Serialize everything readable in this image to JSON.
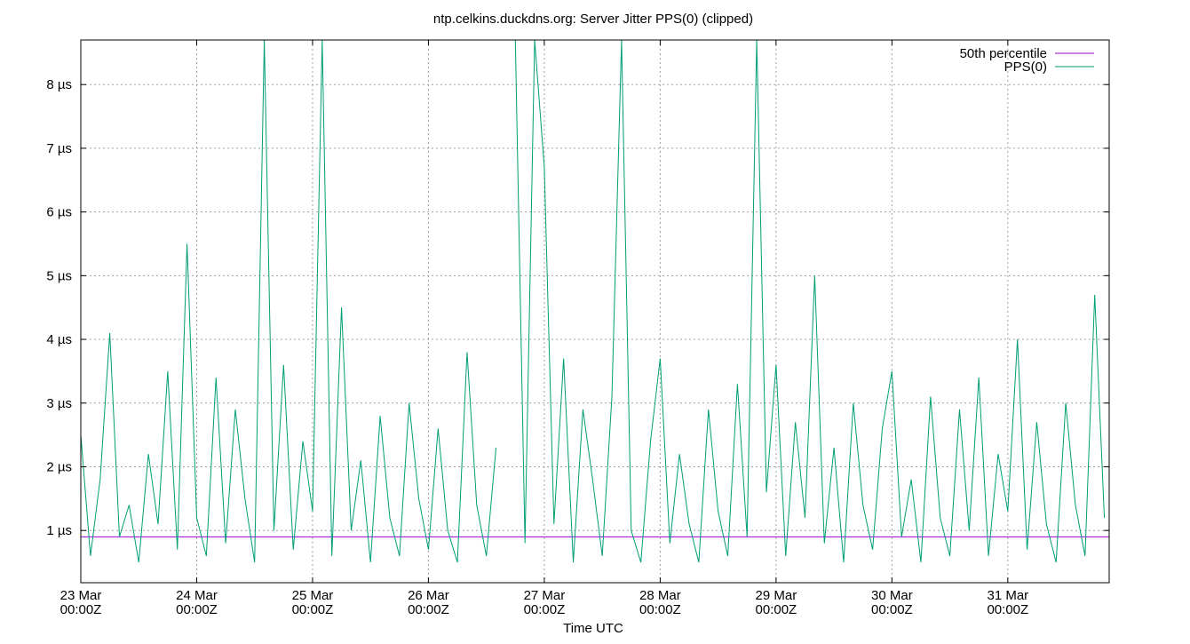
{
  "chart_data": {
    "type": "line",
    "title": "ntp.celkins.duckdns.org: Server Jitter PPS(0) (clipped)",
    "x_label": "Time UTC",
    "xlim": [
      "23 Mar 00:00Z",
      "31 Mar 21:00Z"
    ],
    "xticks": [
      {
        "value": "23 Mar 00:00Z",
        "label": [
          "23 Mar",
          "00:00Z"
        ]
      },
      {
        "value": "24 Mar 00:00Z",
        "label": [
          "24 Mar",
          "00:00Z"
        ]
      },
      {
        "value": "25 Mar 00:00Z",
        "label": [
          "25 Mar",
          "00:00Z"
        ]
      },
      {
        "value": "26 Mar 00:00Z",
        "label": [
          "26 Mar",
          "00:00Z"
        ]
      },
      {
        "value": "27 Mar 00:00Z",
        "label": [
          "27 Mar",
          "00:00Z"
        ]
      },
      {
        "value": "28 Mar 00:00Z",
        "label": [
          "28 Mar",
          "00:00Z"
        ]
      },
      {
        "value": "29 Mar 00:00Z",
        "label": [
          "29 Mar",
          "00:00Z"
        ]
      },
      {
        "value": "30 Mar 00:00Z",
        "label": [
          "30 Mar",
          "00:00Z"
        ]
      },
      {
        "value": "31 Mar 00:00Z",
        "label": [
          "31 Mar",
          "00:00Z"
        ]
      }
    ],
    "ylim": [
      0.18,
      8.7
    ],
    "yticks": [
      {
        "value": 1,
        "label": "1 µs"
      },
      {
        "value": 2,
        "label": "2 µs"
      },
      {
        "value": 3,
        "label": "3 µs"
      },
      {
        "value": 4,
        "label": "4 µs"
      },
      {
        "value": 5,
        "label": "5 µs"
      },
      {
        "value": 6,
        "label": "6 µs"
      },
      {
        "value": 7,
        "label": "7 µs"
      },
      {
        "value": 8,
        "label": "8 µs"
      }
    ],
    "grid": true,
    "legend": "top-right",
    "series": [
      {
        "name": "50th percentile",
        "color": "#9400d3",
        "x": [
          "23 Mar 00:00Z",
          "31 Mar 21:00Z"
        ],
        "values": [
          0.9,
          0.9
        ]
      },
      {
        "name": "PPS(0)",
        "color": "#009e73",
        "x": [
          "23 Mar 00:00Z",
          "23 Mar 02:00Z",
          "23 Mar 04:00Z",
          "23 Mar 06:00Z",
          "23 Mar 08:00Z",
          "23 Mar 10:00Z",
          "23 Mar 12:00Z",
          "23 Mar 14:00Z",
          "23 Mar 16:00Z",
          "23 Mar 18:00Z",
          "23 Mar 20:00Z",
          "23 Mar 22:00Z",
          "24 Mar 00:00Z",
          "24 Mar 02:00Z",
          "24 Mar 04:00Z",
          "24 Mar 06:00Z",
          "24 Mar 08:00Z",
          "24 Mar 10:00Z",
          "24 Mar 12:00Z",
          "24 Mar 14:00Z",
          "24 Mar 16:00Z",
          "24 Mar 18:00Z",
          "24 Mar 20:00Z",
          "24 Mar 22:00Z",
          "25 Mar 00:00Z",
          "25 Mar 02:00Z",
          "25 Mar 04:00Z",
          "25 Mar 06:00Z",
          "25 Mar 08:00Z",
          "25 Mar 10:00Z",
          "25 Mar 12:00Z",
          "25 Mar 14:00Z",
          "25 Mar 16:00Z",
          "25 Mar 18:00Z",
          "25 Mar 20:00Z",
          "25 Mar 22:00Z",
          "26 Mar 00:00Z",
          "26 Mar 02:00Z",
          "26 Mar 04:00Z",
          "26 Mar 06:00Z",
          "26 Mar 08:00Z",
          "26 Mar 10:00Z",
          "26 Mar 12:00Z",
          "26 Mar 14:00Z",
          "26 Mar 16:00Z",
          "26 Mar 18:00Z",
          "26 Mar 20:00Z",
          "26 Mar 22:00Z",
          "27 Mar 00:00Z",
          "27 Mar 02:00Z",
          "27 Mar 04:00Z",
          "27 Mar 06:00Z",
          "27 Mar 08:00Z",
          "27 Mar 10:00Z",
          "27 Mar 12:00Z",
          "27 Mar 14:00Z",
          "27 Mar 16:00Z",
          "27 Mar 18:00Z",
          "27 Mar 20:00Z",
          "27 Mar 22:00Z",
          "28 Mar 00:00Z",
          "28 Mar 02:00Z",
          "28 Mar 04:00Z",
          "28 Mar 06:00Z",
          "28 Mar 08:00Z",
          "28 Mar 10:00Z",
          "28 Mar 12:00Z",
          "28 Mar 14:00Z",
          "28 Mar 16:00Z",
          "28 Mar 18:00Z",
          "28 Mar 20:00Z",
          "28 Mar 22:00Z",
          "29 Mar 00:00Z",
          "29 Mar 02:00Z",
          "29 Mar 04:00Z",
          "29 Mar 06:00Z",
          "29 Mar 08:00Z",
          "29 Mar 10:00Z",
          "29 Mar 12:00Z",
          "29 Mar 14:00Z",
          "29 Mar 16:00Z",
          "29 Mar 18:00Z",
          "29 Mar 20:00Z",
          "29 Mar 22:00Z",
          "30 Mar 00:00Z",
          "30 Mar 02:00Z",
          "30 Mar 04:00Z",
          "30 Mar 06:00Z",
          "30 Mar 08:00Z",
          "30 Mar 10:00Z",
          "30 Mar 12:00Z",
          "30 Mar 14:00Z",
          "30 Mar 16:00Z",
          "30 Mar 18:00Z",
          "30 Mar 20:00Z",
          "30 Mar 22:00Z",
          "31 Mar 00:00Z",
          "31 Mar 02:00Z",
          "31 Mar 04:00Z",
          "31 Mar 06:00Z",
          "31 Mar 08:00Z",
          "31 Mar 10:00Z",
          "31 Mar 12:00Z",
          "31 Mar 14:00Z",
          "31 Mar 16:00Z",
          "31 Mar 18:00Z",
          "31 Mar 20:00Z"
        ],
        "values": [
          2.5,
          0.6,
          1.8,
          4.1,
          0.9,
          1.4,
          0.5,
          2.2,
          1.1,
          3.5,
          0.7,
          5.5,
          1.2,
          0.6,
          3.4,
          0.8,
          2.9,
          1.5,
          0.5,
          8.7,
          1.0,
          3.6,
          0.7,
          2.4,
          1.3,
          8.7,
          0.6,
          4.5,
          1.0,
          2.1,
          0.5,
          2.8,
          1.2,
          0.6,
          3.0,
          1.5,
          0.7,
          2.6,
          1.0,
          0.5,
          3.8,
          1.4,
          0.6,
          2.3,
          null,
          8.7,
          0.8,
          8.7,
          6.7,
          1.1,
          3.7,
          0.5,
          2.9,
          1.8,
          0.6,
          3.1,
          8.7,
          1.0,
          0.5,
          2.4,
          3.7,
          0.8,
          2.2,
          1.1,
          0.5,
          2.9,
          1.3,
          0.6,
          3.3,
          0.9,
          8.7,
          1.6,
          3.6,
          0.6,
          2.7,
          1.2,
          5.0,
          0.8,
          2.3,
          0.5,
          3.0,
          1.4,
          0.7,
          2.6,
          3.5,
          0.9,
          1.8,
          0.5,
          3.1,
          1.2,
          0.6,
          2.9,
          1.0,
          3.4,
          0.6,
          2.2,
          1.3,
          4.0,
          0.7,
          2.7,
          1.1,
          0.5,
          3.0,
          1.4,
          0.6,
          4.7,
          1.2
        ]
      }
    ]
  }
}
